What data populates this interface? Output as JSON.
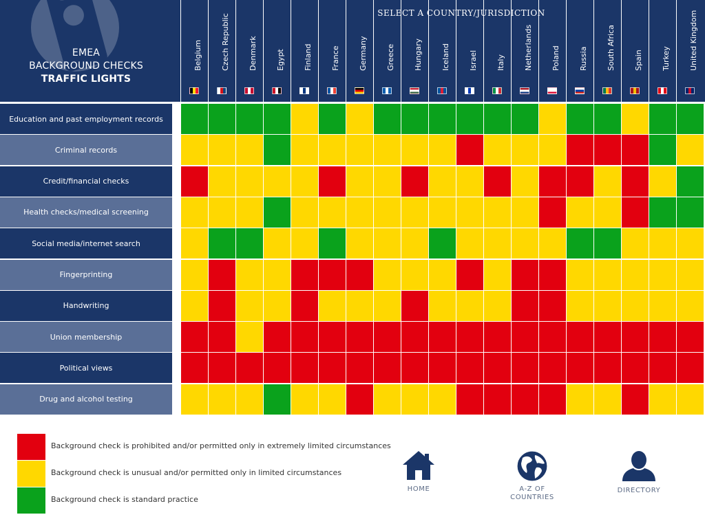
{
  "title": {
    "line1": "EMEA",
    "line2": "BACKGROUND CHECKS",
    "line3": "TRAFFIC LIGHTS"
  },
  "header": {
    "select_label": "SELECT A COUNTRY/JURISDICTION"
  },
  "colors": {
    "navy": "#1b3668",
    "red": "#e2000f",
    "yellow": "#ffd800",
    "green": "#0aa21c"
  },
  "countries": [
    {
      "name": "Belgium",
      "flag": [
        "#000000",
        "#ffd90c",
        "#f31830"
      ]
    },
    {
      "name": "Czech Republic",
      "flag": [
        "#ffffff",
        "#d7141a",
        "#11457e"
      ]
    },
    {
      "name": "Denmark",
      "flag": [
        "#c60c30",
        "#ffffff",
        "#c60c30"
      ]
    },
    {
      "name": "Egypt",
      "flag": [
        "#ce1126",
        "#ffffff",
        "#000000"
      ]
    },
    {
      "name": "Finland",
      "flag": [
        "#ffffff",
        "#003580",
        "#ffffff"
      ]
    },
    {
      "name": "France",
      "flag": [
        "#0055a4",
        "#ffffff",
        "#ef4135"
      ]
    },
    {
      "name": "Germany",
      "flag": [
        "#000000",
        "#dd0000",
        "#ffce00"
      ]
    },
    {
      "name": "Greece",
      "flag": [
        "#0d5eaf",
        "#ffffff",
        "#0d5eaf"
      ]
    },
    {
      "name": "Hungary",
      "flag": [
        "#cd2a3e",
        "#ffffff",
        "#436f4d"
      ]
    },
    {
      "name": "Iceland",
      "flag": [
        "#02529c",
        "#dc1e35",
        "#02529c"
      ]
    },
    {
      "name": "Israel",
      "flag": [
        "#ffffff",
        "#0038b8",
        "#ffffff"
      ]
    },
    {
      "name": "Italy",
      "flag": [
        "#009246",
        "#ffffff",
        "#ce2b37"
      ]
    },
    {
      "name": "Netherlands",
      "flag": [
        "#ae1c28",
        "#ffffff",
        "#21468b"
      ]
    },
    {
      "name": "Poland",
      "flag": [
        "#ffffff",
        "#ffffff",
        "#dc143c"
      ]
    },
    {
      "name": "Russia",
      "flag": [
        "#ffffff",
        "#0039a6",
        "#d52b1e"
      ]
    },
    {
      "name": "South Africa",
      "flag": [
        "#007a4d",
        "#ffb612",
        "#de3831"
      ]
    },
    {
      "name": "Spain",
      "flag": [
        "#aa151b",
        "#f1bf00",
        "#aa151b"
      ]
    },
    {
      "name": "Turkey",
      "flag": [
        "#e30a17",
        "#ffffff",
        "#e30a17"
      ]
    },
    {
      "name": "United Kingdom",
      "flag": [
        "#012169",
        "#c8102e",
        "#012169"
      ]
    }
  ],
  "checks": [
    {
      "label": "Education and past employment records",
      "ratings": [
        "G",
        "G",
        "G",
        "G",
        "Y",
        "G",
        "Y",
        "G",
        "G",
        "G",
        "G",
        "G",
        "G",
        "Y",
        "G",
        "G",
        "Y",
        "G",
        "G"
      ]
    },
    {
      "label": "Criminal records",
      "ratings": [
        "Y",
        "Y",
        "Y",
        "G",
        "Y",
        "Y",
        "Y",
        "Y",
        "Y",
        "Y",
        "R",
        "Y",
        "Y",
        "Y",
        "R",
        "R",
        "R",
        "G",
        "Y"
      ]
    },
    {
      "label": "Credit/financial checks",
      "ratings": [
        "R",
        "Y",
        "Y",
        "Y",
        "Y",
        "R",
        "Y",
        "Y",
        "R",
        "Y",
        "Y",
        "R",
        "Y",
        "R",
        "R",
        "Y",
        "R",
        "Y",
        "G"
      ]
    },
    {
      "label": "Health checks/medical screening",
      "ratings": [
        "Y",
        "Y",
        "Y",
        "G",
        "Y",
        "Y",
        "Y",
        "Y",
        "Y",
        "Y",
        "Y",
        "Y",
        "Y",
        "R",
        "Y",
        "Y",
        "R",
        "G",
        "G"
      ]
    },
    {
      "label": "Social media/internet search",
      "ratings": [
        "Y",
        "G",
        "G",
        "Y",
        "Y",
        "G",
        "Y",
        "Y",
        "Y",
        "G",
        "Y",
        "Y",
        "Y",
        "Y",
        "G",
        "G",
        "Y",
        "Y",
        "Y"
      ]
    },
    {
      "label": "Fingerprinting",
      "ratings": [
        "Y",
        "R",
        "Y",
        "Y",
        "R",
        "R",
        "R",
        "Y",
        "Y",
        "Y",
        "R",
        "Y",
        "R",
        "R",
        "Y",
        "Y",
        "Y",
        "Y",
        "Y"
      ]
    },
    {
      "label": "Handwriting",
      "ratings": [
        "Y",
        "R",
        "Y",
        "Y",
        "R",
        "Y",
        "Y",
        "Y",
        "R",
        "Y",
        "Y",
        "Y",
        "R",
        "R",
        "Y",
        "Y",
        "Y",
        "Y",
        "Y"
      ]
    },
    {
      "label": "Union membership",
      "ratings": [
        "R",
        "R",
        "Y",
        "R",
        "R",
        "R",
        "R",
        "R",
        "R",
        "R",
        "R",
        "R",
        "R",
        "R",
        "R",
        "R",
        "R",
        "R",
        "R"
      ]
    },
    {
      "label": "Political views",
      "ratings": [
        "R",
        "R",
        "R",
        "R",
        "R",
        "R",
        "R",
        "R",
        "R",
        "R",
        "R",
        "R",
        "R",
        "R",
        "R",
        "R",
        "R",
        "R",
        "R"
      ]
    },
    {
      "label": "Drug and alcohol testing",
      "ratings": [
        "Y",
        "Y",
        "Y",
        "G",
        "Y",
        "Y",
        "R",
        "Y",
        "Y",
        "Y",
        "R",
        "R",
        "R",
        "R",
        "Y",
        "Y",
        "R",
        "Y",
        "Y"
      ]
    }
  ],
  "legend": [
    {
      "color": "red",
      "text": "Background check is prohibited and/or permitted only in extremely limited circumstances"
    },
    {
      "color": "yellow",
      "text": "Background check is unusual and/or permitted only in limited circumstances"
    },
    {
      "color": "green",
      "text": "Background check is standard practice"
    }
  ],
  "nav": {
    "home": "HOME",
    "az_line1": "A-Z OF",
    "az_line2": "COUNTRIES",
    "directory": "DIRECTORY"
  },
  "icons": {
    "title_background": "traffic-light-icon",
    "home": "house-icon",
    "az": "globe-icon",
    "directory": "person-icon"
  }
}
